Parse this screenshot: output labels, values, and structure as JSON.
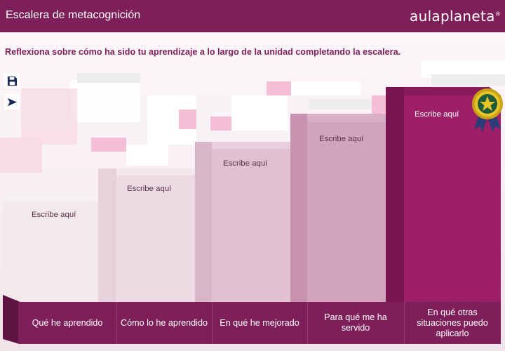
{
  "header": {
    "title": "Escalera de metacognición",
    "logo": "aulaplaneta",
    "logo_mark": "®"
  },
  "instruction": "Reflexiona sobre cómo ha sido tu aprendizaje a lo largo de la unidad completando la escalera.",
  "side_buttons": [
    {
      "icon": "save-icon"
    },
    {
      "icon": "send-icon"
    }
  ],
  "steps": [
    {
      "placeholder": "Escribe aquí",
      "label": "Qué he aprendido"
    },
    {
      "placeholder": "Escribe aquí",
      "label": "Cómo lo he aprendido"
    },
    {
      "placeholder": "Escribe aquí",
      "label": "En qué he mejorado"
    },
    {
      "placeholder": "Escribe aquí",
      "label": "Para qué me ha servido"
    },
    {
      "placeholder": "Escribe aquí",
      "label": "En qué otras situaciones puedo aplicarlo"
    }
  ],
  "colors": {
    "brand": "#7e1f59",
    "step1": "#f3e8ec",
    "step2": "#ecdbe2",
    "step3": "#dfc1d0",
    "step4": "#d1a3bc",
    "step5": "#9c1f68"
  },
  "medal_icon": "star-medal-icon"
}
